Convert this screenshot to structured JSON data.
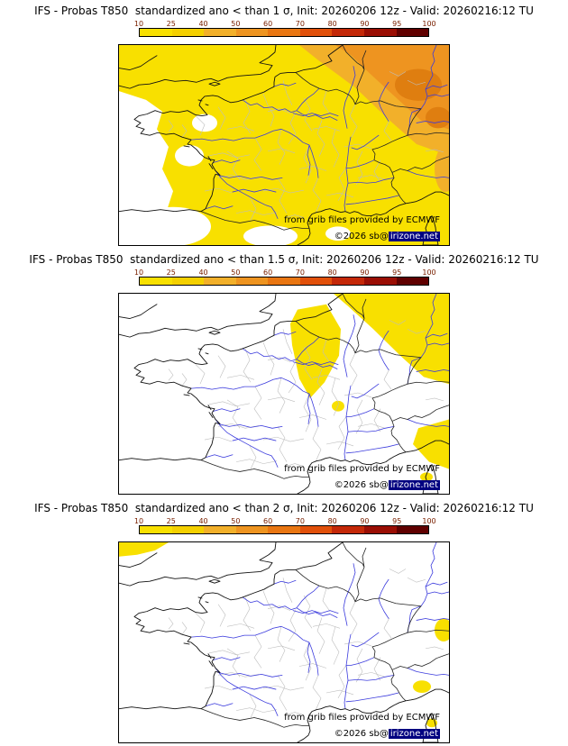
{
  "colorbar": {
    "ticks": [
      "10",
      "25",
      "40",
      "50",
      "60",
      "70",
      "80",
      "90",
      "95",
      "100"
    ],
    "segment_colors": [
      "#F8E000",
      "#F4D000",
      "#F2B02A",
      "#EE9420",
      "#E97612",
      "#E1500A",
      "#C42808",
      "#9A0E04",
      "#600000"
    ],
    "tick_color": "#7A2000",
    "border_color": "#000000"
  },
  "map_colors": {
    "p10_yellow": "#F8E000",
    "p40_light_orange": "#F2B02A",
    "p50_orange": "#EE9420",
    "p60_dark_orange": "#DF7E10",
    "none_white": "#FFFFFF",
    "river_blue": "#3B3BDD",
    "department_gray": "#BDBDBD",
    "copyright_bg_navy": "#000080"
  },
  "panels": [
    {
      "title": "IFS - Probas T850  standardized ano < than 1 σ, Init: 20260206 12z - Valid: 20260216:12 TU",
      "credit": "from grib files provided by ECMWF",
      "copyright_prefix": "©2026 sb@",
      "copyright_domain": "irizone.net"
    },
    {
      "title": "IFS - Probas T850  standardized ano < than 1.5 σ, Init: 20260206 12z - Valid: 20260216:12 TU",
      "credit": "from grib files provided by ECMWF",
      "copyright_prefix": "©2026 sb@",
      "copyright_domain": "irizone.net"
    },
    {
      "title": "IFS - Probas T850  standardized ano < than 2 σ, Init: 20260206 12z - Valid: 20260216:12 TU",
      "credit": "from grib files provided by ECMWF",
      "copyright_prefix": "©2026 sb@",
      "copyright_domain": "irizone.net"
    }
  ]
}
